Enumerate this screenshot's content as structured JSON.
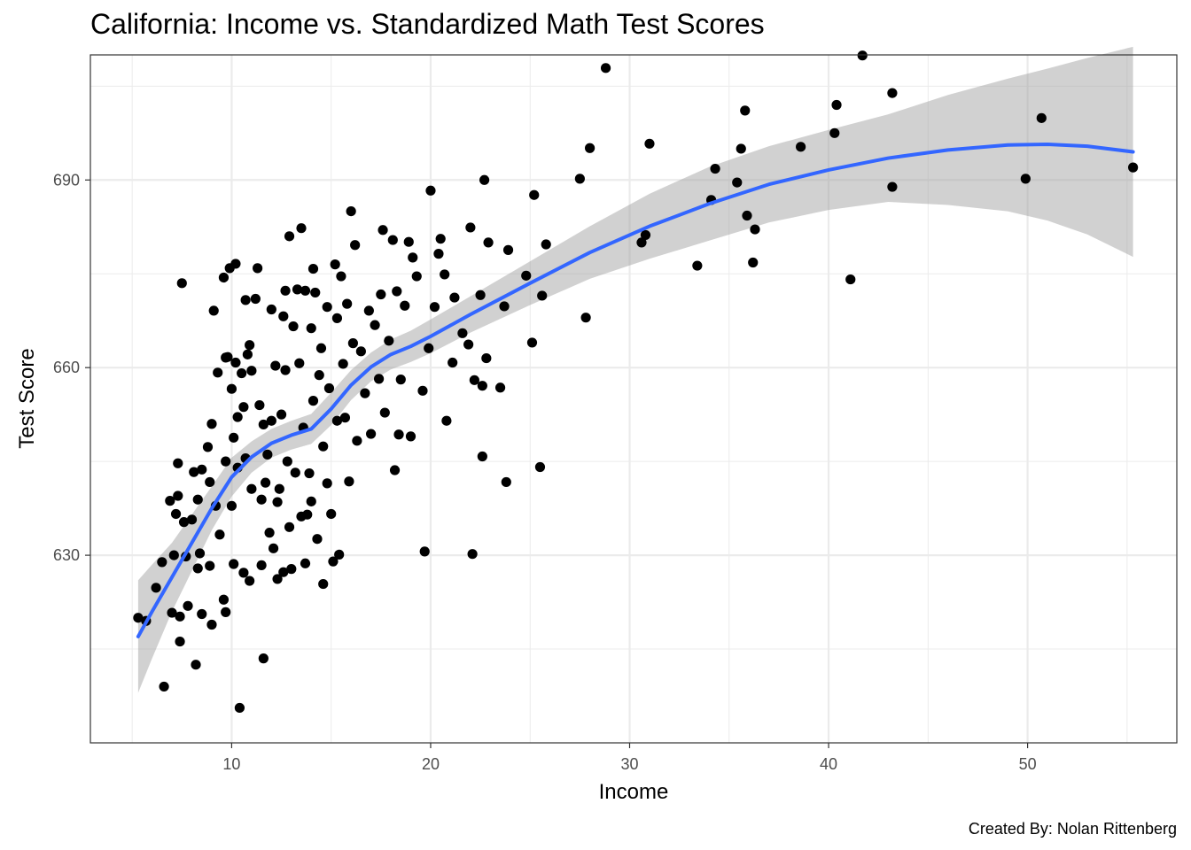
{
  "chart_data": {
    "type": "scatter",
    "title": "California: Income vs. Standardized Math Test Scores",
    "xlabel": "Income",
    "ylabel": "Test Score",
    "caption": "Created By: Nolan Rittenberg",
    "xlim": [
      2.9,
      57.5
    ],
    "ylim": [
      600,
      710
    ],
    "x_ticks": [
      10,
      20,
      30,
      40,
      50
    ],
    "y_ticks": [
      630,
      660,
      690
    ],
    "x_minor_ticks": [
      5,
      15,
      25,
      35,
      45,
      55
    ],
    "y_minor_ticks": [
      615,
      645,
      675,
      705
    ],
    "grid": true,
    "legend": "none",
    "colors": {
      "points": "#000000",
      "smooth_line": "#3366ff",
      "confidence_band": "#999999",
      "grid": "#ebebeb",
      "panel_border": "#333333"
    },
    "points": [
      [
        5.3,
        620.0
      ],
      [
        5.7,
        619.5
      ],
      [
        6.2,
        624.8
      ],
      [
        6.5,
        628.9
      ],
      [
        6.6,
        609.0
      ],
      [
        6.9,
        638.7
      ],
      [
        7.0,
        620.8
      ],
      [
        7.1,
        630.0
      ],
      [
        7.2,
        636.6
      ],
      [
        7.3,
        639.5
      ],
      [
        7.3,
        644.7
      ],
      [
        7.4,
        616.2
      ],
      [
        7.4,
        620.2
      ],
      [
        7.5,
        673.5
      ],
      [
        7.6,
        635.3
      ],
      [
        7.7,
        629.8
      ],
      [
        7.8,
        621.9
      ],
      [
        8.0,
        635.7
      ],
      [
        8.1,
        643.3
      ],
      [
        8.2,
        612.5
      ],
      [
        8.3,
        627.9
      ],
      [
        8.3,
        638.9
      ],
      [
        8.4,
        630.3
      ],
      [
        8.5,
        620.6
      ],
      [
        8.5,
        643.7
      ],
      [
        8.8,
        647.3
      ],
      [
        8.9,
        641.7
      ],
      [
        8.9,
        628.3
      ],
      [
        9.0,
        618.9
      ],
      [
        9.0,
        651.0
      ],
      [
        9.1,
        669.1
      ],
      [
        9.2,
        637.9
      ],
      [
        9.3,
        659.2
      ],
      [
        9.4,
        633.3
      ],
      [
        9.6,
        674.4
      ],
      [
        9.6,
        622.9
      ],
      [
        9.7,
        645.0
      ],
      [
        9.7,
        661.6
      ],
      [
        9.7,
        620.9
      ],
      [
        9.8,
        661.7
      ],
      [
        9.9,
        675.9
      ],
      [
        10.0,
        656.6
      ],
      [
        10.0,
        637.9
      ],
      [
        10.1,
        628.6
      ],
      [
        10.1,
        648.8
      ],
      [
        10.2,
        676.6
      ],
      [
        10.2,
        660.8
      ],
      [
        10.3,
        652.1
      ],
      [
        10.3,
        644.0
      ],
      [
        10.4,
        605.6
      ],
      [
        10.5,
        659.1
      ],
      [
        10.6,
        653.7
      ],
      [
        10.6,
        627.2
      ],
      [
        10.7,
        670.8
      ],
      [
        10.7,
        645.5
      ],
      [
        10.8,
        662.1
      ],
      [
        10.9,
        663.6
      ],
      [
        10.9,
        625.9
      ],
      [
        11.0,
        659.5
      ],
      [
        11.0,
        640.6
      ],
      [
        11.2,
        671.0
      ],
      [
        11.3,
        675.9
      ],
      [
        11.4,
        654.0
      ],
      [
        11.5,
        638.9
      ],
      [
        11.5,
        628.4
      ],
      [
        11.6,
        650.9
      ],
      [
        11.6,
        613.5
      ],
      [
        11.7,
        641.6
      ],
      [
        11.8,
        646.1
      ],
      [
        11.9,
        633.6
      ],
      [
        12.0,
        669.3
      ],
      [
        12.0,
        651.5
      ],
      [
        12.1,
        631.1
      ],
      [
        12.2,
        660.3
      ],
      [
        12.3,
        638.5
      ],
      [
        12.3,
        626.2
      ],
      [
        12.4,
        640.6
      ],
      [
        12.5,
        652.5
      ],
      [
        12.6,
        668.2
      ],
      [
        12.6,
        627.3
      ],
      [
        12.7,
        659.6
      ],
      [
        12.7,
        672.3
      ],
      [
        12.8,
        645.0
      ],
      [
        12.9,
        634.5
      ],
      [
        12.9,
        681.0
      ],
      [
        13.0,
        627.8
      ],
      [
        13.1,
        666.6
      ],
      [
        13.2,
        643.2
      ],
      [
        13.3,
        672.5
      ],
      [
        13.4,
        660.7
      ],
      [
        13.5,
        636.2
      ],
      [
        13.5,
        682.3
      ],
      [
        13.6,
        650.4
      ],
      [
        13.7,
        628.7
      ],
      [
        13.7,
        672.3
      ],
      [
        13.8,
        636.5
      ],
      [
        13.9,
        643.1
      ],
      [
        14.0,
        666.3
      ],
      [
        14.0,
        638.6
      ],
      [
        14.1,
        675.8
      ],
      [
        14.1,
        654.7
      ],
      [
        14.2,
        672.0
      ],
      [
        14.3,
        632.6
      ],
      [
        14.4,
        658.8
      ],
      [
        14.5,
        663.1
      ],
      [
        14.6,
        625.4
      ],
      [
        14.6,
        647.4
      ],
      [
        14.8,
        669.7
      ],
      [
        14.8,
        641.5
      ],
      [
        14.9,
        656.7
      ],
      [
        15.0,
        636.6
      ],
      [
        15.1,
        629.0
      ],
      [
        15.2,
        676.5
      ],
      [
        15.3,
        667.9
      ],
      [
        15.3,
        651.5
      ],
      [
        15.4,
        630.1
      ],
      [
        15.5,
        674.6
      ],
      [
        15.6,
        660.6
      ],
      [
        15.7,
        652.0
      ],
      [
        15.8,
        670.2
      ],
      [
        15.9,
        641.8
      ],
      [
        16.0,
        685.0
      ],
      [
        16.1,
        663.9
      ],
      [
        16.2,
        679.6
      ],
      [
        16.3,
        648.3
      ],
      [
        16.5,
        662.6
      ],
      [
        16.7,
        655.9
      ],
      [
        16.9,
        669.1
      ],
      [
        17.0,
        649.4
      ],
      [
        17.2,
        666.8
      ],
      [
        17.4,
        658.2
      ],
      [
        17.5,
        671.7
      ],
      [
        17.6,
        682.0
      ],
      [
        17.7,
        652.8
      ],
      [
        17.9,
        664.3
      ],
      [
        18.1,
        680.4
      ],
      [
        18.2,
        643.6
      ],
      [
        18.3,
        672.2
      ],
      [
        18.4,
        649.3
      ],
      [
        18.5,
        658.1
      ],
      [
        18.7,
        669.9
      ],
      [
        18.9,
        680.1
      ],
      [
        19.0,
        649.0
      ],
      [
        19.1,
        677.6
      ],
      [
        19.3,
        674.6
      ],
      [
        19.6,
        656.3
      ],
      [
        19.7,
        630.6
      ],
      [
        19.9,
        663.1
      ],
      [
        20.0,
        688.3
      ],
      [
        20.2,
        669.7
      ],
      [
        20.4,
        678.2
      ],
      [
        20.5,
        680.6
      ],
      [
        20.7,
        674.9
      ],
      [
        20.8,
        651.5
      ],
      [
        21.1,
        660.8
      ],
      [
        21.2,
        671.2
      ],
      [
        21.6,
        665.5
      ],
      [
        21.9,
        663.7
      ],
      [
        22.0,
        682.4
      ],
      [
        22.1,
        630.2
      ],
      [
        22.2,
        658.0
      ],
      [
        22.5,
        671.6
      ],
      [
        22.6,
        645.8
      ],
      [
        22.6,
        657.1
      ],
      [
        22.7,
        690.0
      ],
      [
        22.8,
        661.5
      ],
      [
        22.9,
        680.0
      ],
      [
        23.5,
        656.8
      ],
      [
        23.7,
        669.8
      ],
      [
        23.8,
        641.7
      ],
      [
        23.9,
        678.8
      ],
      [
        24.8,
        674.7
      ],
      [
        25.1,
        664.0
      ],
      [
        25.2,
        687.6
      ],
      [
        25.5,
        644.1
      ],
      [
        25.6,
        671.5
      ],
      [
        25.8,
        679.7
      ],
      [
        27.5,
        690.2
      ],
      [
        27.8,
        668.0
      ],
      [
        28.0,
        695.1
      ],
      [
        28.8,
        707.9
      ],
      [
        30.6,
        680.0
      ],
      [
        30.8,
        681.2
      ],
      [
        31.0,
        695.8
      ],
      [
        33.4,
        676.3
      ],
      [
        34.1,
        686.8
      ],
      [
        34.3,
        691.8
      ],
      [
        35.4,
        689.6
      ],
      [
        35.6,
        695.0
      ],
      [
        35.8,
        701.1
      ],
      [
        35.9,
        684.3
      ],
      [
        36.2,
        676.8
      ],
      [
        36.3,
        682.1
      ],
      [
        38.6,
        695.3
      ],
      [
        40.3,
        697.5
      ],
      [
        40.4,
        702.0
      ],
      [
        41.1,
        674.1
      ],
      [
        41.7,
        709.9
      ],
      [
        43.2,
        703.9
      ],
      [
        43.2,
        688.9
      ],
      [
        49.9,
        690.2
      ],
      [
        50.7,
        699.9
      ],
      [
        55.3,
        692.0
      ]
    ],
    "smooth": [
      [
        5.3,
        617.0
      ],
      [
        6.0,
        621.0
      ],
      [
        7.0,
        626.5
      ],
      [
        8.0,
        632.0
      ],
      [
        9.0,
        637.5
      ],
      [
        10.0,
        642.5
      ],
      [
        11.0,
        645.7
      ],
      [
        12.0,
        647.9
      ],
      [
        13.0,
        649.2
      ],
      [
        14.0,
        650.2
      ],
      [
        15.0,
        653.4
      ],
      [
        16.0,
        657.2
      ],
      [
        17.0,
        660.1
      ],
      [
        18.0,
        662.1
      ],
      [
        19.0,
        663.4
      ],
      [
        20.0,
        665.0
      ],
      [
        22.0,
        668.5
      ],
      [
        25.0,
        673.5
      ],
      [
        28.0,
        678.4
      ],
      [
        31.0,
        682.6
      ],
      [
        34.0,
        686.2
      ],
      [
        37.0,
        689.3
      ],
      [
        40.0,
        691.6
      ],
      [
        43.0,
        693.5
      ],
      [
        46.0,
        694.8
      ],
      [
        49.0,
        695.6
      ],
      [
        51.0,
        695.7
      ],
      [
        53.0,
        695.4
      ],
      [
        55.3,
        694.5
      ]
    ],
    "band_upper": [
      [
        5.3,
        626.0
      ],
      [
        6.0,
        628.5
      ],
      [
        7.0,
        632.0
      ],
      [
        8.0,
        636.5
      ],
      [
        9.0,
        641.0
      ],
      [
        10.0,
        645.6
      ],
      [
        11.0,
        648.2
      ],
      [
        12.0,
        650.2
      ],
      [
        13.0,
        651.5
      ],
      [
        14.0,
        652.6
      ],
      [
        15.0,
        656.0
      ],
      [
        16.0,
        659.6
      ],
      [
        17.0,
        662.4
      ],
      [
        18.0,
        664.5
      ],
      [
        19.0,
        665.9
      ],
      [
        20.0,
        667.7
      ],
      [
        22.0,
        671.4
      ],
      [
        25.0,
        677.0
      ],
      [
        28.0,
        682.6
      ],
      [
        31.0,
        687.8
      ],
      [
        34.0,
        692.1
      ],
      [
        37.0,
        695.4
      ],
      [
        40.0,
        698.0
      ],
      [
        43.0,
        700.5
      ],
      [
        46.0,
        703.6
      ],
      [
        49.0,
        706.2
      ],
      [
        51.0,
        707.8
      ],
      [
        53.0,
        709.5
      ],
      [
        55.3,
        711.3
      ]
    ],
    "band_lower": [
      [
        5.3,
        608.0
      ],
      [
        6.0,
        613.5
      ],
      [
        7.0,
        621.0
      ],
      [
        8.0,
        627.5
      ],
      [
        9.0,
        634.0
      ],
      [
        10.0,
        639.4
      ],
      [
        11.0,
        643.2
      ],
      [
        12.0,
        645.6
      ],
      [
        13.0,
        646.9
      ],
      [
        14.0,
        647.8
      ],
      [
        15.0,
        650.8
      ],
      [
        16.0,
        654.8
      ],
      [
        17.0,
        657.8
      ],
      [
        18.0,
        659.7
      ],
      [
        19.0,
        660.9
      ],
      [
        20.0,
        662.3
      ],
      [
        22.0,
        665.6
      ],
      [
        25.0,
        670.0
      ],
      [
        28.0,
        674.2
      ],
      [
        31.0,
        677.4
      ],
      [
        34.0,
        680.3
      ],
      [
        37.0,
        683.2
      ],
      [
        40.0,
        685.2
      ],
      [
        43.0,
        686.5
      ],
      [
        46.0,
        686.0
      ],
      [
        49.0,
        685.0
      ],
      [
        51.0,
        683.5
      ],
      [
        53.0,
        681.3
      ],
      [
        55.3,
        677.7
      ]
    ]
  }
}
